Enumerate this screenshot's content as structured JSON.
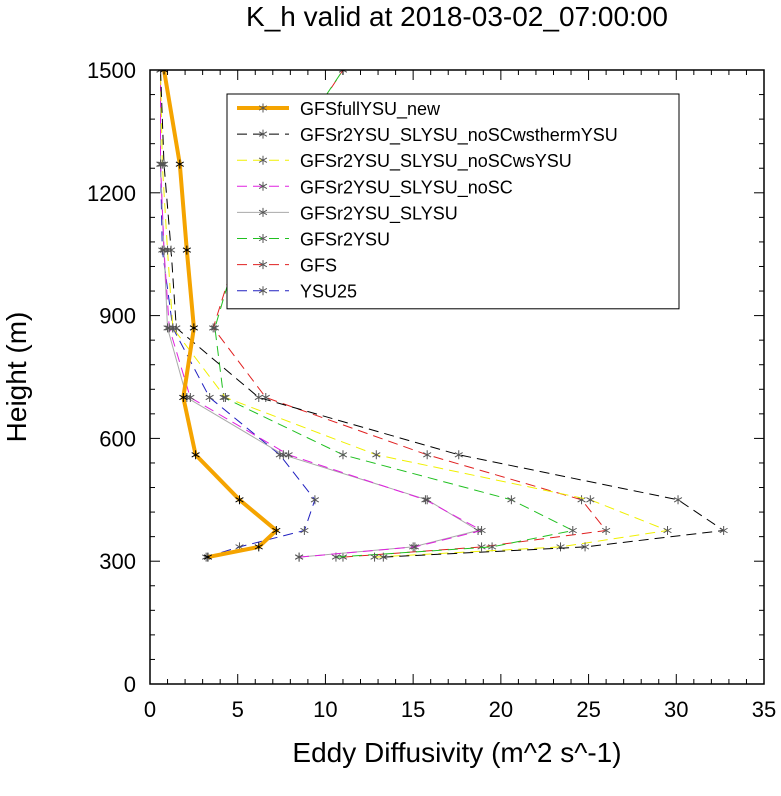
{
  "chart_data": {
    "type": "line",
    "title": "K_h valid at 2018-03-02_07:00:00",
    "xlabel": "Eddy Diffusivity (m^2 s^-1)",
    "ylabel": "Height (m)",
    "xlim": [
      0,
      35
    ],
    "ylim": [
      0,
      1500
    ],
    "xticks": [
      0,
      5,
      10,
      15,
      20,
      25,
      30,
      35
    ],
    "yticks": [
      0,
      300,
      600,
      900,
      1200,
      1500
    ],
    "grid": false,
    "legend": "top-right",
    "series": [
      {
        "name": "GFSfullYSU_new",
        "color": "#f5a400",
        "dash": "solid",
        "width": 4,
        "points": [
          [
            3.3,
            310
          ],
          [
            6.2,
            335
          ],
          [
            7.2,
            375
          ],
          [
            5.1,
            450
          ],
          [
            2.6,
            560
          ],
          [
            1.9,
            700
          ],
          [
            2.5,
            870
          ],
          [
            2.1,
            1060
          ],
          [
            1.7,
            1270
          ],
          [
            0.8,
            1500
          ]
        ]
      },
      {
        "name": "GFSr2YSU_SLYSU_noSCwsthermYSU",
        "color": "#000000",
        "dash": "10,6",
        "width": 1,
        "points": [
          [
            13.3,
            310
          ],
          [
            24.8,
            335
          ],
          [
            32.7,
            375
          ],
          [
            30.1,
            450
          ],
          [
            17.6,
            560
          ],
          [
            6.2,
            700
          ],
          [
            1.5,
            870
          ],
          [
            1.2,
            1060
          ],
          [
            0.8,
            1270
          ],
          [
            0.6,
            1500
          ]
        ]
      },
      {
        "name": "GFSr2YSU_SLYSU_noSCwsYSU",
        "color": "#f0f000",
        "dash": "10,6",
        "width": 1,
        "points": [
          [
            12.8,
            310
          ],
          [
            23.4,
            335
          ],
          [
            29.5,
            375
          ],
          [
            25.1,
            450
          ],
          [
            12.9,
            560
          ],
          [
            4.3,
            700
          ],
          [
            1.3,
            870
          ],
          [
            1.0,
            1060
          ],
          [
            0.7,
            1270
          ],
          [
            0.6,
            1500
          ]
        ]
      },
      {
        "name": "GFSr2YSU_SLYSU_noSC",
        "color": "#e020e0",
        "dash": "10,6",
        "width": 1,
        "points": [
          [
            8.5,
            310
          ],
          [
            15.1,
            335
          ],
          [
            18.9,
            375
          ],
          [
            15.7,
            450
          ],
          [
            7.9,
            560
          ],
          [
            2.3,
            700
          ],
          [
            1.1,
            870
          ],
          [
            0.8,
            1060
          ],
          [
            0.6,
            1270
          ],
          [
            0.6,
            1500
          ]
        ]
      },
      {
        "name": "GFSr2YSU_SLYSU",
        "color": "#aaaaaa",
        "dash": "solid",
        "width": 1,
        "points": [
          [
            8.5,
            310
          ],
          [
            15.0,
            335
          ],
          [
            18.7,
            375
          ],
          [
            15.8,
            450
          ],
          [
            7.6,
            560
          ],
          [
            2.1,
            700
          ],
          [
            1.0,
            870
          ],
          [
            0.8,
            1060
          ],
          [
            0.6,
            1270
          ],
          [
            0.6,
            1500
          ]
        ]
      },
      {
        "name": "GFSr2YSU",
        "color": "#20c020",
        "dash": "10,6",
        "width": 1,
        "points": [
          [
            10.6,
            310
          ],
          [
            19.5,
            335
          ],
          [
            24.1,
            375
          ],
          [
            20.6,
            450
          ],
          [
            11.0,
            560
          ],
          [
            4.2,
            700
          ],
          [
            3.7,
            870
          ],
          [
            5.0,
            1060
          ],
          [
            7.4,
            1270
          ],
          [
            11.0,
            1500
          ]
        ]
      },
      {
        "name": "GFS",
        "color": "#e02020",
        "dash": "10,6",
        "width": 1,
        "points": [
          [
            11.0,
            310
          ],
          [
            18.9,
            335
          ],
          [
            26.0,
            375
          ],
          [
            24.6,
            450
          ],
          [
            15.8,
            560
          ],
          [
            6.6,
            700
          ],
          [
            3.6,
            870
          ],
          [
            5.0,
            1060
          ],
          [
            7.5,
            1270
          ],
          [
            11.0,
            1500
          ]
        ]
      },
      {
        "name": "YSU25",
        "color": "#2020c0",
        "dash": "10,6",
        "width": 1,
        "points": [
          [
            3.2,
            310
          ],
          [
            5.1,
            335
          ],
          [
            8.8,
            375
          ],
          [
            9.4,
            450
          ],
          [
            7.4,
            560
          ],
          [
            3.4,
            700
          ],
          [
            1.3,
            870
          ],
          [
            0.7,
            1060
          ],
          [
            0.6,
            1270
          ],
          [
            0.6,
            1500
          ]
        ]
      }
    ]
  }
}
